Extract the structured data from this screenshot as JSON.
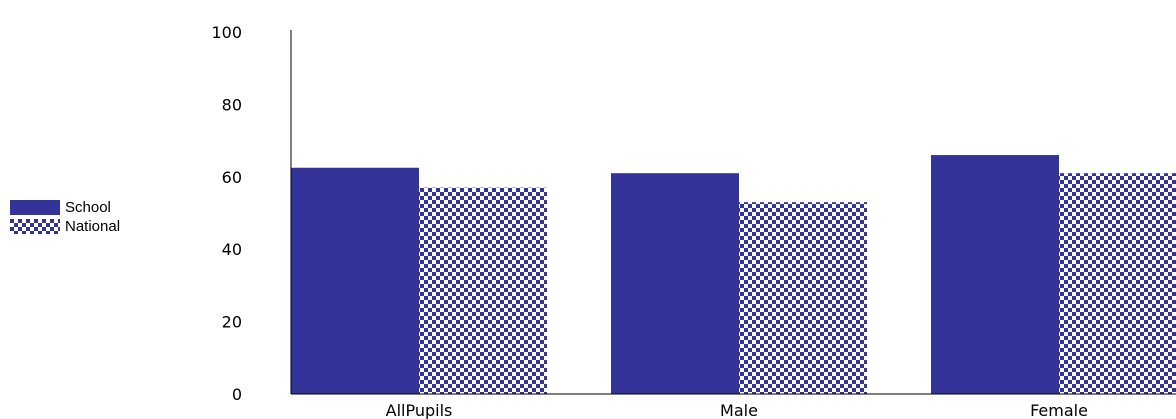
{
  "chart_data": {
    "type": "bar",
    "categories": [
      "AllPupils",
      "Male",
      "Female"
    ],
    "series": [
      {
        "name": "School",
        "values": [
          62.5,
          61,
          66
        ],
        "color": "#333399",
        "pattern": "solid"
      },
      {
        "name": "National",
        "values": [
          57,
          53,
          61
        ],
        "color": "#333399",
        "pattern": "checker"
      }
    ],
    "y_ticks": [
      "0",
      "20",
      "40",
      "60",
      "80",
      "100"
    ],
    "ylim": [
      0,
      100
    ],
    "grid": false,
    "legend_position": "left"
  }
}
